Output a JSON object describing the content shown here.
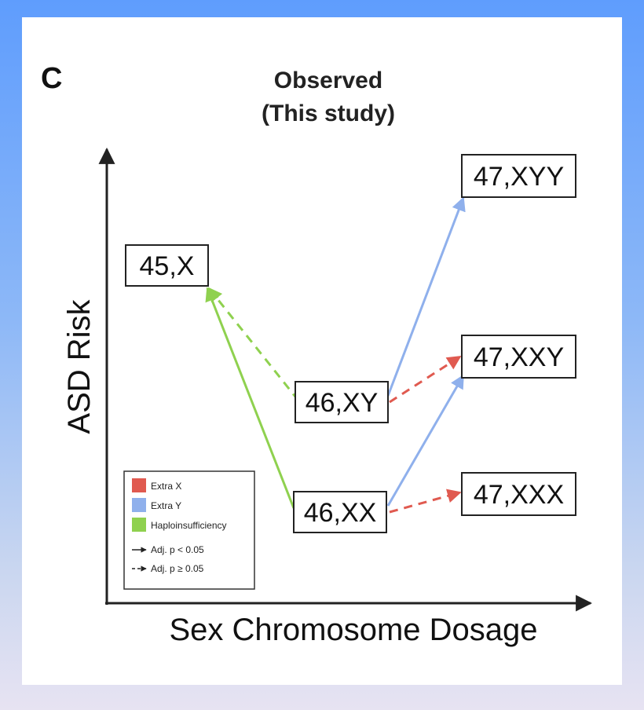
{
  "panel_letter": "C",
  "title": {
    "line1": "Observed",
    "line2": "(This study)"
  },
  "axes": {
    "x_label": "Sex Chromosome Dosage",
    "y_label": "ASD Risk"
  },
  "nodes": {
    "x45": "45,X",
    "xy46": "46,XY",
    "xx46": "46,XX",
    "xyy47": "47,XYY",
    "xxy47": "47,XXY",
    "xxx47": "47,XXX"
  },
  "legend": {
    "extra_x": "Extra X",
    "extra_y": "Extra Y",
    "haploinsufficiency": "Haploinsufficiency",
    "significant": "Adj. p < 0.05",
    "not_significant": "Adj. p ≥ 0.05"
  },
  "colors": {
    "extra_x": "#e05a50",
    "extra_y": "#8fb0ec",
    "haploinsufficiency": "#8fd14f"
  },
  "edges": [
    {
      "from": "46,XX",
      "to": "45,X",
      "type": "haploinsufficiency",
      "style": "solid"
    },
    {
      "from": "46,XY",
      "to": "45,X",
      "type": "haploinsufficiency",
      "style": "dashed"
    },
    {
      "from": "46,XY",
      "to": "47,XYY",
      "type": "extra_y",
      "style": "solid"
    },
    {
      "from": "46,XX",
      "to": "47,XXY",
      "type": "extra_y",
      "style": "solid"
    },
    {
      "from": "46,XY",
      "to": "47,XXY",
      "type": "extra_x",
      "style": "dashed"
    },
    {
      "from": "46,XX",
      "to": "47,XXX",
      "type": "extra_x",
      "style": "dashed"
    }
  ]
}
